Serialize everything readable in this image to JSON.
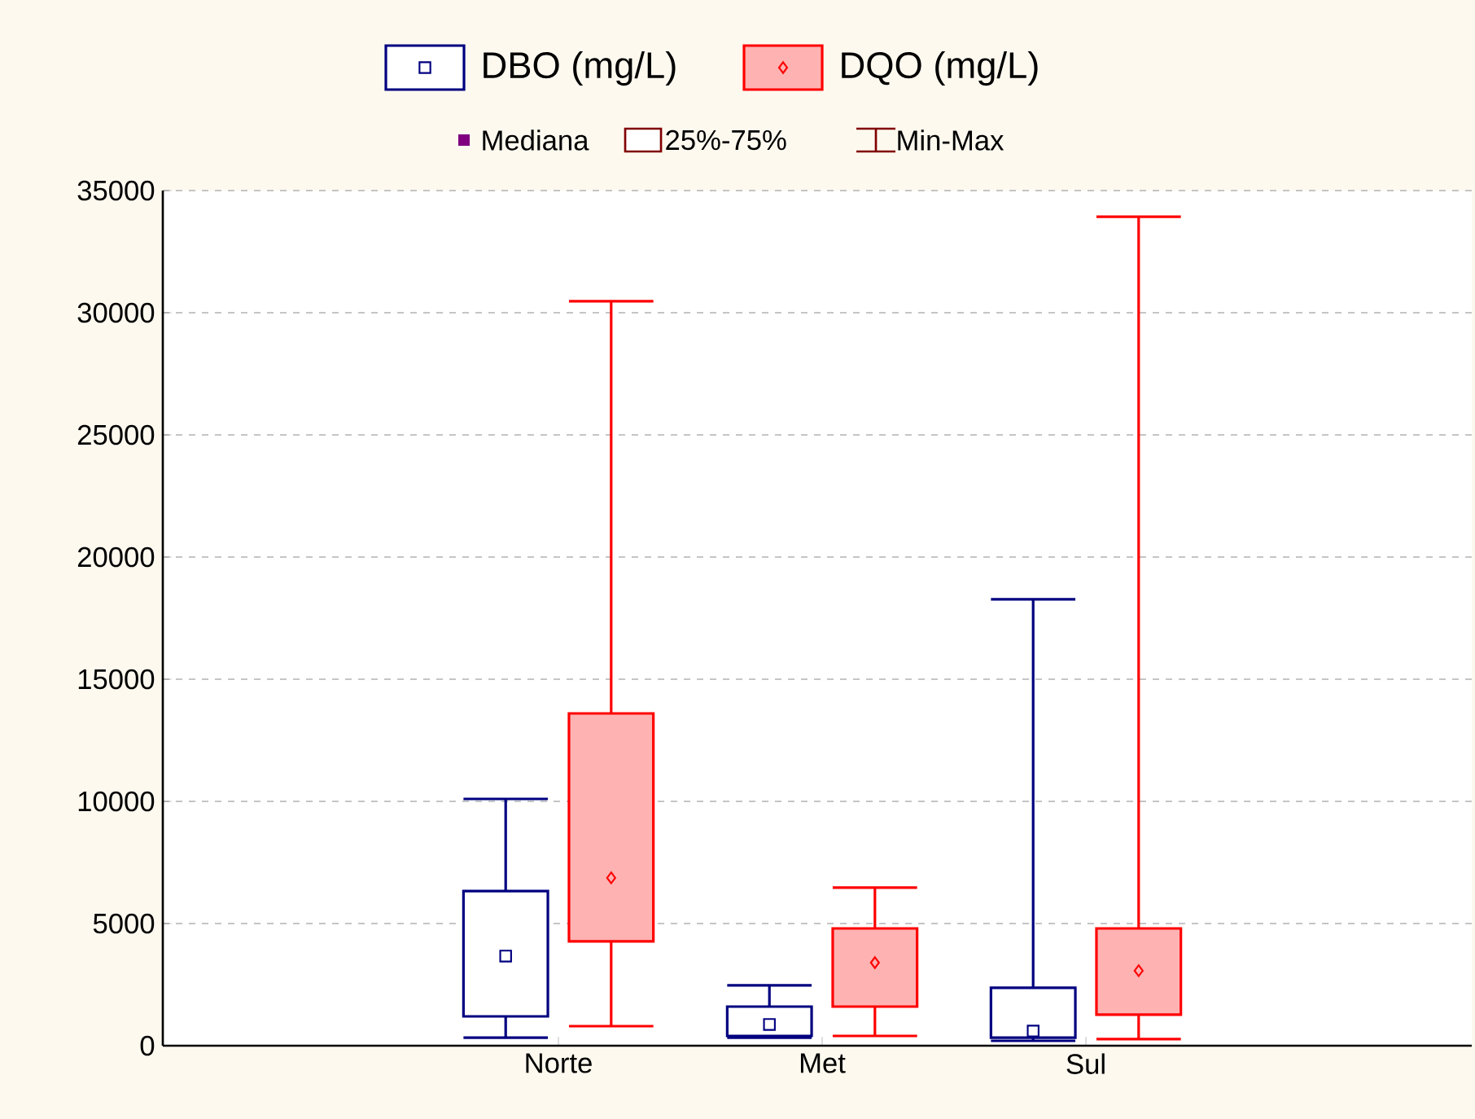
{
  "chart_data": {
    "type": "box",
    "categories": [
      "Norte",
      "Met",
      "Sul"
    ],
    "series": [
      {
        "name": "DBO (mg/L)",
        "color": "#000080",
        "marker": "square",
        "boxes": [
          {
            "low": 330,
            "q1": 1200,
            "median": 3670,
            "q3": 6330,
            "high": 10100
          },
          {
            "low": 330,
            "q1": 400,
            "median": 870,
            "q3": 1600,
            "high": 2470
          },
          {
            "low": 200,
            "q1": 330,
            "median": 600,
            "q3": 2370,
            "high": 18270
          }
        ]
      },
      {
        "name": "DQO (mg/L)",
        "color": "#ff0000",
        "marker": "diamond",
        "boxes": [
          {
            "low": 800,
            "q1": 4270,
            "median": 6870,
            "q3": 13600,
            "high": 30470
          },
          {
            "low": 400,
            "q1": 1600,
            "median": 3400,
            "q3": 4800,
            "high": 6470
          },
          {
            "low": 270,
            "q1": 1270,
            "median": 3070,
            "q3": 4800,
            "high": 33930
          }
        ]
      }
    ],
    "ylim": [
      0,
      35000
    ],
    "yticks": [
      0,
      5000,
      10000,
      15000,
      20000,
      25000,
      30000,
      35000
    ],
    "grid": "y",
    "legend": "top",
    "annotations": [
      "Mediana",
      "25%-75%",
      "Min-Max"
    ]
  }
}
